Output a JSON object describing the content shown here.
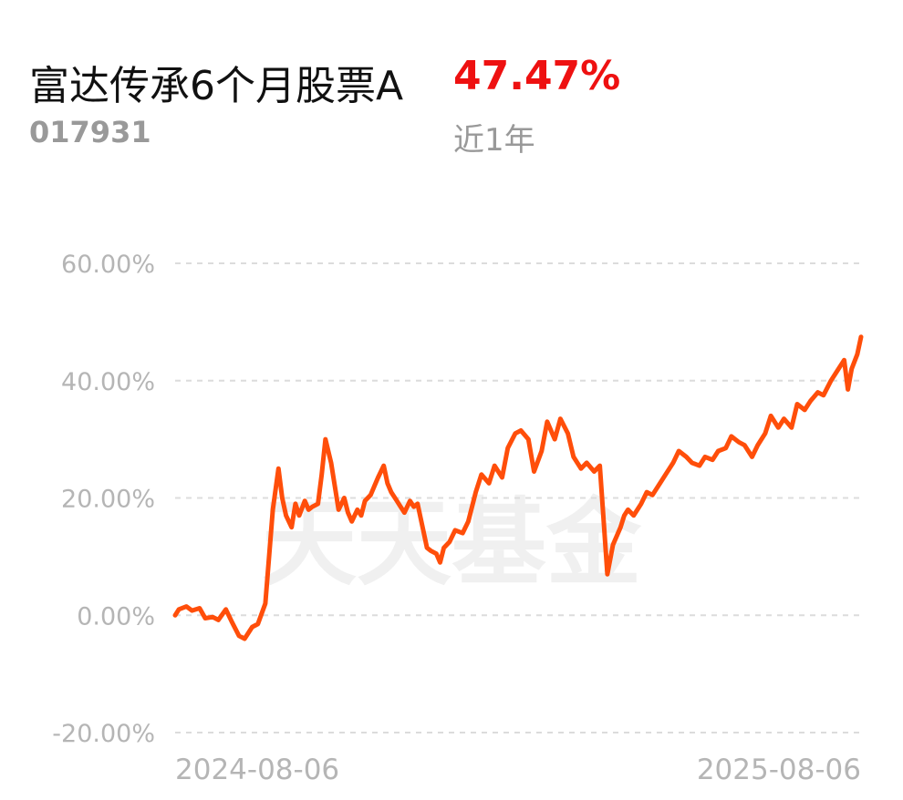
{
  "header": {
    "fund_name": "富达传承6个月股票A",
    "return_value": "47.47%",
    "fund_code": "017931",
    "period_label": "近1年"
  },
  "watermark": "天天基金",
  "colors": {
    "line": "#ff4e0a",
    "return": "#ee1111",
    "grid": "#dcdcdc",
    "axis_text": "#b5b5b5"
  },
  "chart_data": {
    "type": "line",
    "title": "",
    "xlabel": "",
    "ylabel": "",
    "y_tick_labels": [
      "60.00%",
      "40.00%",
      "20.00%",
      "0.00%",
      "-20.00%"
    ],
    "y_ticks": [
      60,
      40,
      20,
      0,
      -20
    ],
    "ylim": [
      -20,
      60
    ],
    "x_tick_labels": [
      "2024-08-06",
      "2025-08-06"
    ],
    "xlim": [
      "2024-08-06",
      "2025-08-06"
    ],
    "grid": true,
    "grid_style": "dashed horizontal",
    "x": [
      "2024-08-06",
      "2024-08-08",
      "2024-08-12",
      "2024-08-15",
      "2024-08-19",
      "2024-08-22",
      "2024-08-26",
      "2024-08-29",
      "2024-09-02",
      "2024-09-05",
      "2024-09-09",
      "2024-09-12",
      "2024-09-16",
      "2024-09-19",
      "2024-09-23",
      "2024-09-25",
      "2024-09-27",
      "2024-09-30",
      "2024-10-02",
      "2024-10-04",
      "2024-10-07",
      "2024-10-09",
      "2024-10-11",
      "2024-10-14",
      "2024-10-16",
      "2024-10-18",
      "2024-10-21",
      "2024-10-23",
      "2024-10-25",
      "2024-10-28",
      "2024-10-30",
      "2024-11-01",
      "2024-11-04",
      "2024-11-06",
      "2024-11-08",
      "2024-11-11",
      "2024-11-13",
      "2024-11-15",
      "2024-11-18",
      "2024-11-20",
      "2024-11-22",
      "2024-11-25",
      "2024-11-27",
      "2024-11-29",
      "2024-12-02",
      "2024-12-04",
      "2024-12-06",
      "2024-12-09",
      "2024-12-11",
      "2024-12-13",
      "2024-12-16",
      "2024-12-18",
      "2024-12-20",
      "2024-12-23",
      "2024-12-25",
      "2024-12-27",
      "2024-12-30",
      "2025-01-02",
      "2025-01-06",
      "2025-01-09",
      "2025-01-13",
      "2025-01-16",
      "2025-01-20",
      "2025-01-23",
      "2025-01-27",
      "2025-01-30",
      "2025-02-03",
      "2025-02-06",
      "2025-02-10",
      "2025-02-13",
      "2025-02-17",
      "2025-02-20",
      "2025-02-24",
      "2025-02-27",
      "2025-03-03",
      "2025-03-06",
      "2025-03-10",
      "2025-03-13",
      "2025-03-17",
      "2025-03-20",
      "2025-03-24",
      "2025-03-27",
      "2025-03-31",
      "2025-04-02",
      "2025-04-04",
      "2025-04-07",
      "2025-04-09",
      "2025-04-11",
      "2025-04-14",
      "2025-04-17",
      "2025-04-21",
      "2025-04-24",
      "2025-04-28",
      "2025-05-01",
      "2025-05-05",
      "2025-05-08",
      "2025-05-12",
      "2025-05-15",
      "2025-05-19",
      "2025-05-22",
      "2025-05-26",
      "2025-05-29",
      "2025-06-02",
      "2025-06-05",
      "2025-06-09",
      "2025-06-12",
      "2025-06-16",
      "2025-06-19",
      "2025-06-23",
      "2025-06-26",
      "2025-06-30",
      "2025-07-03",
      "2025-07-07",
      "2025-07-10",
      "2025-07-14",
      "2025-07-17",
      "2025-07-21",
      "2025-07-24",
      "2025-07-28",
      "2025-07-30",
      "2025-08-01",
      "2025-08-04",
      "2025-08-06"
    ],
    "series": [
      {
        "values": [
          0.0,
          1.0,
          1.5,
          0.8,
          1.2,
          -0.5,
          -0.3,
          -0.8,
          1.0,
          -1.0,
          -3.5,
          -4.0,
          -2.0,
          -1.5,
          2.0,
          10.0,
          18.0,
          25.0,
          20.0,
          17.0,
          15.0,
          19.0,
          17.0,
          19.5,
          18.0,
          18.5,
          19.0,
          24.0,
          30.0,
          26.0,
          22.0,
          18.0,
          20.0,
          17.5,
          16.0,
          18.0,
          17.0,
          19.5,
          20.5,
          22.0,
          23.5,
          25.5,
          22.5,
          21.0,
          19.5,
          18.5,
          17.5,
          19.5,
          18.5,
          19.0,
          14.5,
          11.5,
          11.0,
          10.5,
          9.0,
          11.5,
          12.5,
          14.5,
          14.0,
          16.0,
          21.0,
          24.0,
          22.5,
          25.5,
          23.5,
          28.5,
          31.0,
          31.5,
          30.0,
          24.5,
          28.0,
          33.0,
          30.0,
          33.5,
          31.0,
          27.0,
          25.0,
          26.0,
          24.5,
          25.5,
          7.0,
          12.0,
          15.0,
          17.0,
          18.0,
          17.0,
          18.0,
          19.0,
          21.0,
          20.5,
          22.5,
          24.0,
          26.0,
          28.0,
          27.0,
          26.0,
          25.5,
          27.0,
          26.5,
          28.0,
          28.5,
          30.5,
          29.5,
          29.0,
          27.0,
          29.0,
          31.0,
          34.0,
          32.0,
          33.5,
          32.0,
          36.0,
          35.0,
          36.5,
          38.0,
          37.5,
          40.0,
          41.5,
          43.5,
          38.5,
          42.0,
          44.5,
          47.47
        ]
      }
    ]
  }
}
